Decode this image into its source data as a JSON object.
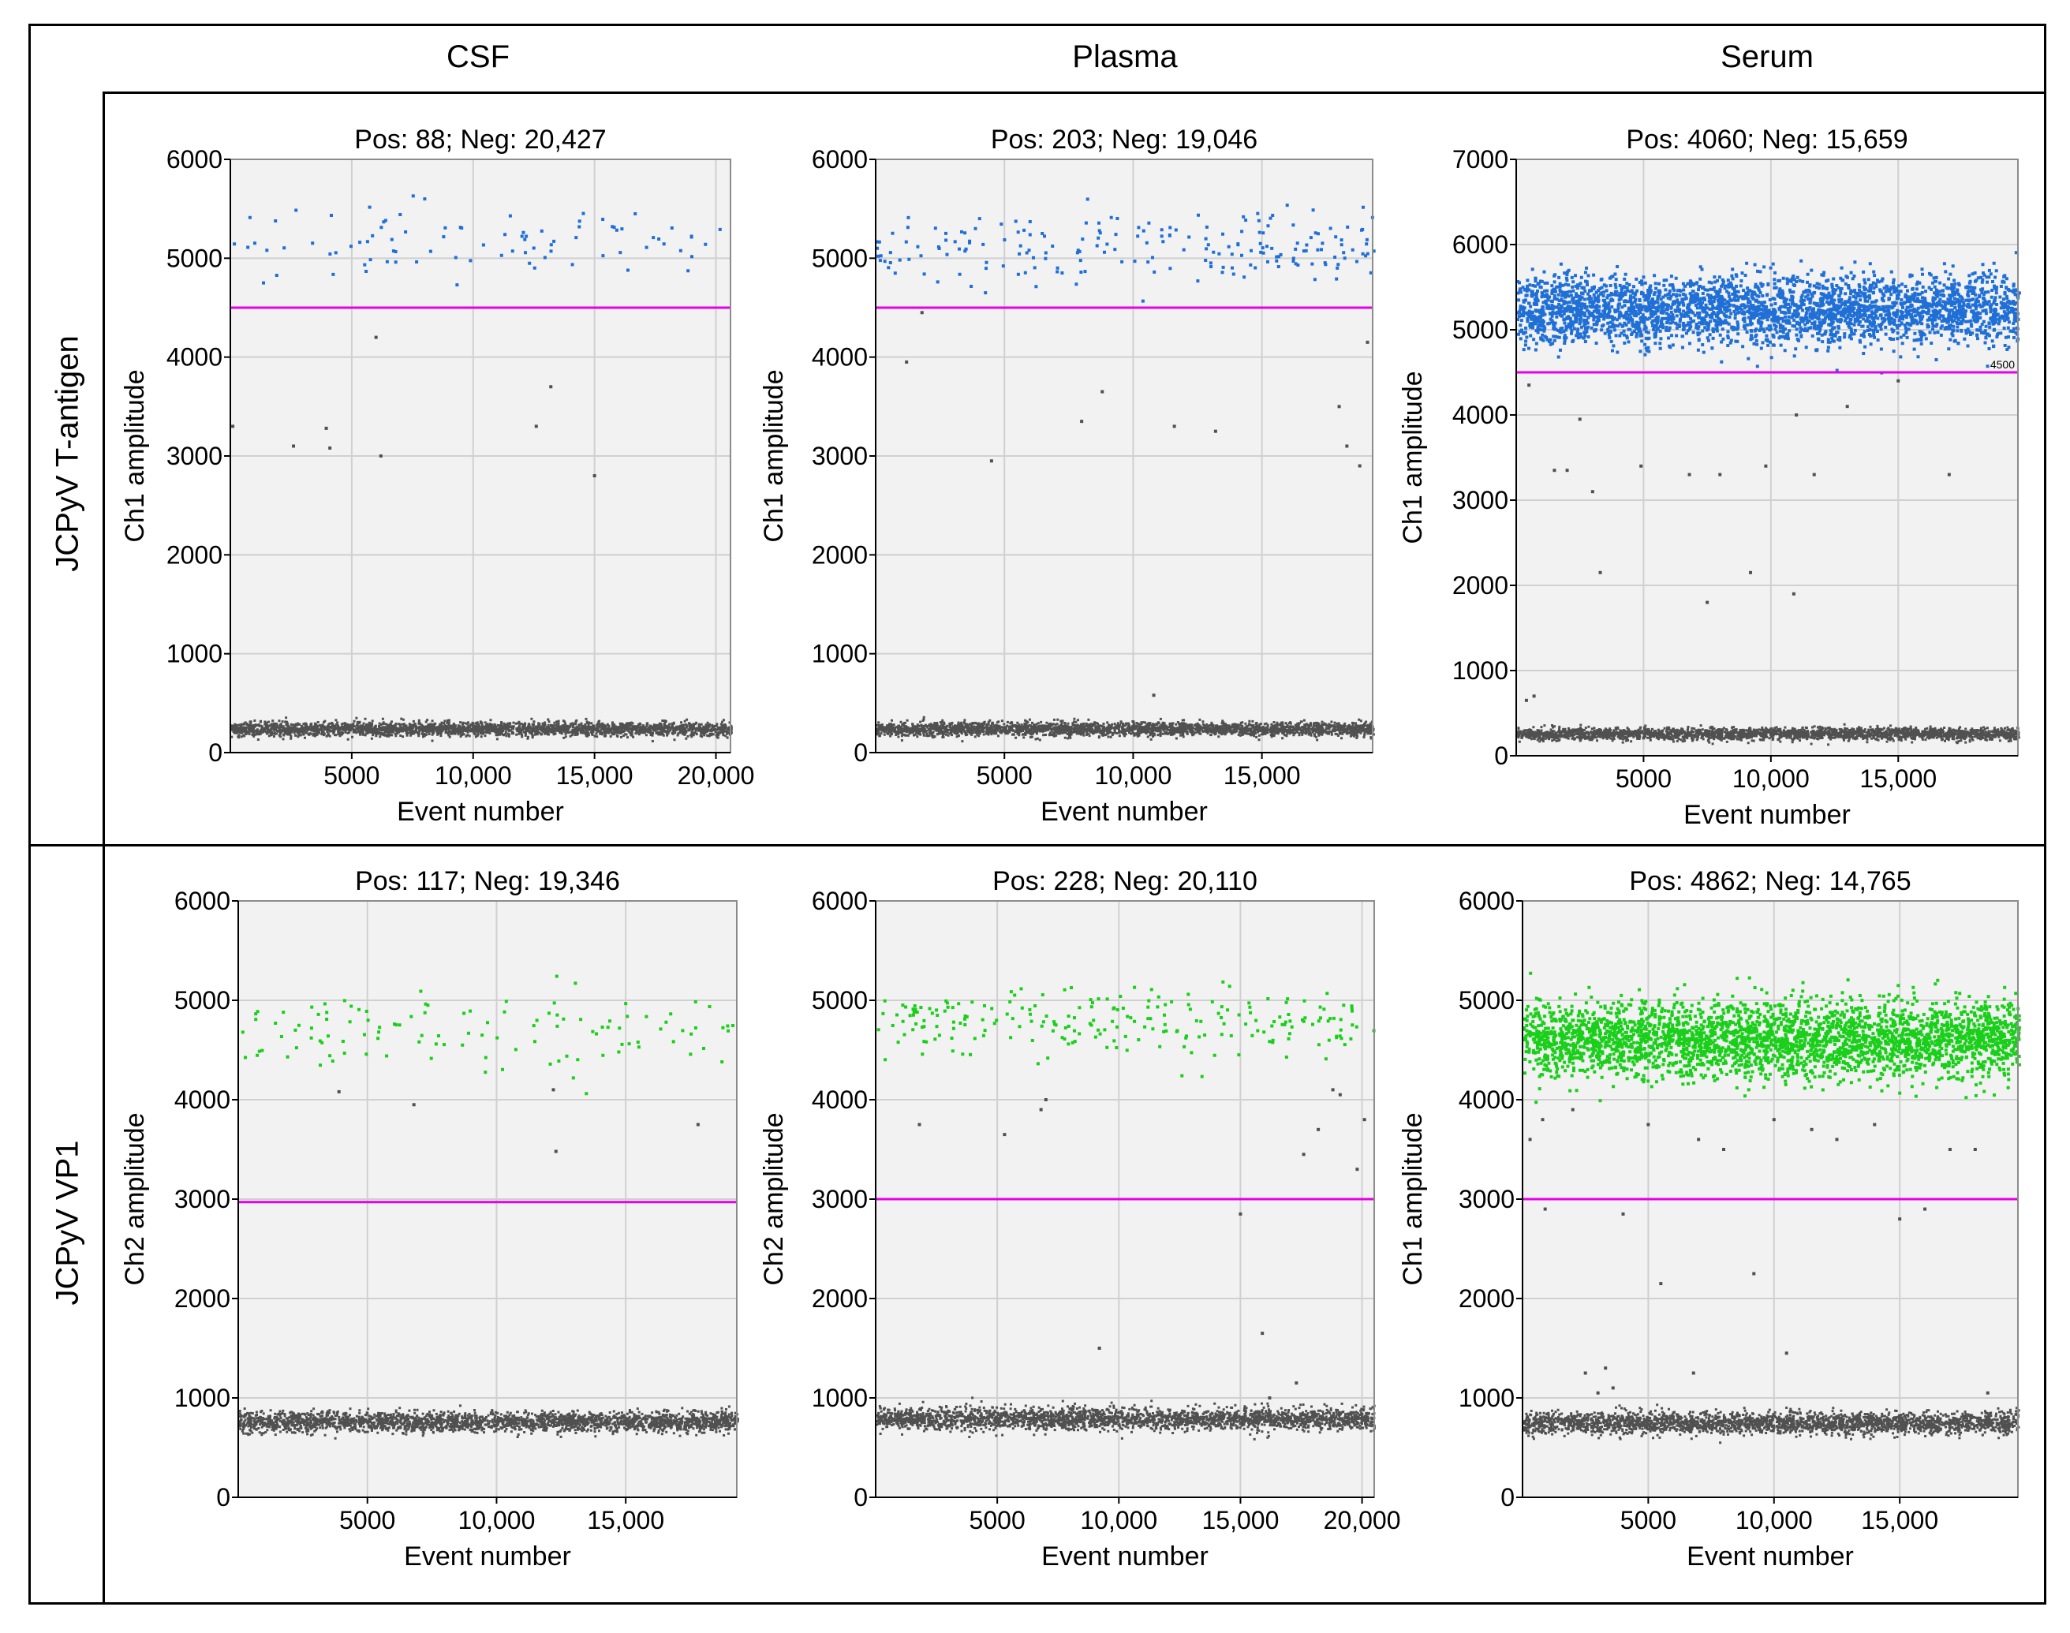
{
  "columns": [
    "CSF",
    "Plasma",
    "Serum"
  ],
  "rows": [
    "JCPyV T-antigen",
    "JCPyV VP1"
  ],
  "colors": {
    "positive_ch1": "#1f6fd6",
    "positive_ch2": "#19cf19",
    "negative": "#505050",
    "threshold": "#e600e6",
    "plot_bg": "#f2f2f2",
    "grid": "#d0d0d0"
  },
  "chart_data": [
    {
      "type": "scatter",
      "row": 0,
      "col": 0,
      "title": "Pos: 88; Neg: 20,427",
      "xlabel": "Event number",
      "ylabel": "Ch1 amplitude",
      "xlim": [
        0,
        20600
      ],
      "ylim": [
        0,
        6000
      ],
      "xticks": [
        5000,
        10000,
        15000,
        20000
      ],
      "xtick_labels": [
        "5000",
        "10,000",
        "15,000",
        "20,000"
      ],
      "yticks": [
        0,
        1000,
        2000,
        3000,
        4000,
        5000,
        6000
      ],
      "yticks_labels": [
        "0",
        "1000",
        "2000",
        "3000",
        "4000",
        "5000",
        "6000"
      ],
      "threshold": 4500,
      "threshold_label": "",
      "positives": {
        "count": 88,
        "mean": 5150,
        "sd": 200,
        "color": "positive_ch1"
      },
      "negatives": {
        "count": 20427,
        "mean": 250,
        "sd": 35
      },
      "outliers": [
        [
          2600,
          3100
        ],
        [
          3950,
          3280
        ],
        [
          4100,
          3080
        ],
        [
          6000,
          4200
        ],
        [
          6200,
          3000
        ],
        [
          12600,
          3300
        ],
        [
          13200,
          3700
        ],
        [
          15000,
          2800
        ],
        [
          100,
          3300
        ]
      ],
      "grid": true
    },
    {
      "type": "scatter",
      "row": 0,
      "col": 1,
      "title": "Pos: 203; Neg: 19,046",
      "xlabel": "Event number",
      "ylabel": "Ch1 amplitude",
      "xlim": [
        0,
        19300
      ],
      "ylim": [
        0,
        6000
      ],
      "xticks": [
        5000,
        10000,
        15000
      ],
      "xtick_labels": [
        "5000",
        "10,000",
        "15,000"
      ],
      "yticks": [
        0,
        1000,
        2000,
        3000,
        4000,
        5000,
        6000
      ],
      "yticks_labels": [
        "0",
        "1000",
        "2000",
        "3000",
        "4000",
        "5000",
        "6000"
      ],
      "threshold": 4500,
      "threshold_label": "",
      "positives": {
        "count": 203,
        "mean": 5100,
        "sd": 180,
        "color": "positive_ch1"
      },
      "negatives": {
        "count": 19046,
        "mean": 250,
        "sd": 35
      },
      "outliers": [
        [
          1200,
          3950
        ],
        [
          1800,
          4450
        ],
        [
          4500,
          2950
        ],
        [
          8000,
          3350
        ],
        [
          8800,
          3650
        ],
        [
          10800,
          580
        ],
        [
          11600,
          3300
        ],
        [
          13200,
          3250
        ],
        [
          18000,
          3500
        ],
        [
          18300,
          3100
        ],
        [
          18800,
          2900
        ],
        [
          19100,
          4150
        ]
      ],
      "grid": true
    },
    {
      "type": "scatter",
      "row": 0,
      "col": 2,
      "title": "Pos: 4060; Neg: 15,659",
      "xlabel": "Event number",
      "ylabel": "Ch1 amplitude",
      "xlim": [
        0,
        19700
      ],
      "ylim": [
        0,
        7000
      ],
      "xticks": [
        5000,
        10000,
        15000
      ],
      "xtick_labels": [
        "5000",
        "10,000",
        "15,000"
      ],
      "yticks": [
        0,
        1000,
        2000,
        3000,
        4000,
        5000,
        6000,
        7000
      ],
      "yticks_labels": [
        "0",
        "1000",
        "2000",
        "3000",
        "4000",
        "5000",
        "6000",
        "7000"
      ],
      "threshold": 4500,
      "threshold_label": "4500",
      "positives": {
        "count": 4060,
        "mean": 5250,
        "sd": 200,
        "color": "positive_ch1"
      },
      "negatives": {
        "count": 15659,
        "mean": 270,
        "sd": 35
      },
      "outliers": [
        [
          400,
          650
        ],
        [
          500,
          4350
        ],
        [
          700,
          700
        ],
        [
          1500,
          3350
        ],
        [
          2000,
          3350
        ],
        [
          2500,
          3950
        ],
        [
          3000,
          3100
        ],
        [
          3300,
          2150
        ],
        [
          4900,
          3400
        ],
        [
          6800,
          3300
        ],
        [
          7500,
          1800
        ],
        [
          8000,
          3300
        ],
        [
          9200,
          2150
        ],
        [
          9800,
          3400
        ],
        [
          10900,
          1900
        ],
        [
          11000,
          4000
        ],
        [
          11700,
          3300
        ],
        [
          13000,
          4100
        ],
        [
          15000,
          4400
        ],
        [
          17000,
          3300
        ]
      ],
      "grid": true
    },
    {
      "type": "scatter",
      "row": 1,
      "col": 0,
      "title": "Pos: 117; Neg: 19,346",
      "xlabel": "Event number",
      "ylabel": "Ch2 amplitude",
      "xlim": [
        0,
        19300
      ],
      "ylim": [
        0,
        6000
      ],
      "xticks": [
        5000,
        10000,
        15000
      ],
      "xtick_labels": [
        "5000",
        "10,000",
        "15,000"
      ],
      "yticks": [
        0,
        1000,
        2000,
        3000,
        4000,
        5000,
        6000
      ],
      "yticks_labels": [
        "0",
        "1000",
        "2000",
        "3000",
        "4000",
        "5000",
        "6000"
      ],
      "threshold": 2970,
      "threshold_label": "",
      "positives": {
        "count": 117,
        "mean": 4720,
        "sd": 170,
        "color": "positive_ch2"
      },
      "negatives": {
        "count": 19346,
        "mean": 770,
        "sd": 50
      },
      "outliers": [
        [
          3900,
          4080
        ],
        [
          6800,
          3950
        ],
        [
          12300,
          3480
        ],
        [
          12200,
          4100
        ],
        [
          17800,
          3750
        ]
      ],
      "grid": true
    },
    {
      "type": "scatter",
      "row": 1,
      "col": 1,
      "title": "Pos: 228; Neg: 20,110",
      "xlabel": "Event number",
      "ylabel": "Ch2 amplitude",
      "xlim": [
        0,
        20500
      ],
      "ylim": [
        0,
        6000
      ],
      "xticks": [
        5000,
        10000,
        15000,
        20000
      ],
      "xtick_labels": [
        "5000",
        "10,000",
        "15,000",
        "20,000"
      ],
      "yticks": [
        0,
        1000,
        2000,
        3000,
        4000,
        5000,
        6000
      ],
      "yticks_labels": [
        "0",
        "1000",
        "2000",
        "3000",
        "4000",
        "5000",
        "6000"
      ],
      "threshold": 3000,
      "threshold_label": "",
      "positives": {
        "count": 228,
        "mean": 4780,
        "sd": 170,
        "color": "positive_ch2"
      },
      "negatives": {
        "count": 20110,
        "mean": 800,
        "sd": 55
      },
      "outliers": [
        [
          1800,
          3750
        ],
        [
          5300,
          3650
        ],
        [
          6800,
          3900
        ],
        [
          7000,
          4000
        ],
        [
          9200,
          1500
        ],
        [
          15000,
          2850
        ],
        [
          15900,
          1650
        ],
        [
          16200,
          1000
        ],
        [
          17300,
          1150
        ],
        [
          17600,
          3450
        ],
        [
          18200,
          3700
        ],
        [
          18800,
          4100
        ],
        [
          19100,
          4050
        ],
        [
          19800,
          3300
        ],
        [
          20100,
          3800
        ]
      ],
      "grid": true
    },
    {
      "type": "scatter",
      "row": 1,
      "col": 2,
      "title": "Pos: 4862; Neg: 14,765",
      "xlabel": "Event number",
      "ylabel": "Ch1 amplitude",
      "xlim": [
        0,
        19700
      ],
      "ylim": [
        0,
        6000
      ],
      "xticks": [
        5000,
        10000,
        15000
      ],
      "xtick_labels": [
        "5000",
        "10,000",
        "15,000"
      ],
      "yticks": [
        0,
        1000,
        2000,
        3000,
        4000,
        5000,
        6000
      ],
      "yticks_labels": [
        "0",
        "1000",
        "2000",
        "3000",
        "4000",
        "5000",
        "6000"
      ],
      "threshold": 3000,
      "threshold_label": "",
      "positives": {
        "count": 4862,
        "mean": 4620,
        "sd": 190,
        "color": "positive_ch2"
      },
      "negatives": {
        "count": 14765,
        "mean": 760,
        "sd": 55
      },
      "outliers": [
        [
          300,
          3600
        ],
        [
          800,
          3800
        ],
        [
          900,
          2900
        ],
        [
          2000,
          3900
        ],
        [
          2500,
          1250
        ],
        [
          3000,
          1050
        ],
        [
          3300,
          1300
        ],
        [
          3600,
          1100
        ],
        [
          4000,
          2850
        ],
        [
          5000,
          3750
        ],
        [
          5500,
          2150
        ],
        [
          6800,
          1250
        ],
        [
          7000,
          3600
        ],
        [
          8000,
          3500
        ],
        [
          9200,
          2250
        ],
        [
          10000,
          3800
        ],
        [
          10500,
          1450
        ],
        [
          11500,
          3700
        ],
        [
          12500,
          3600
        ],
        [
          14000,
          3750
        ],
        [
          15000,
          2800
        ],
        [
          16000,
          2900
        ],
        [
          17000,
          3500
        ],
        [
          18000,
          3500
        ],
        [
          18500,
          1050
        ]
      ],
      "grid": true
    }
  ]
}
